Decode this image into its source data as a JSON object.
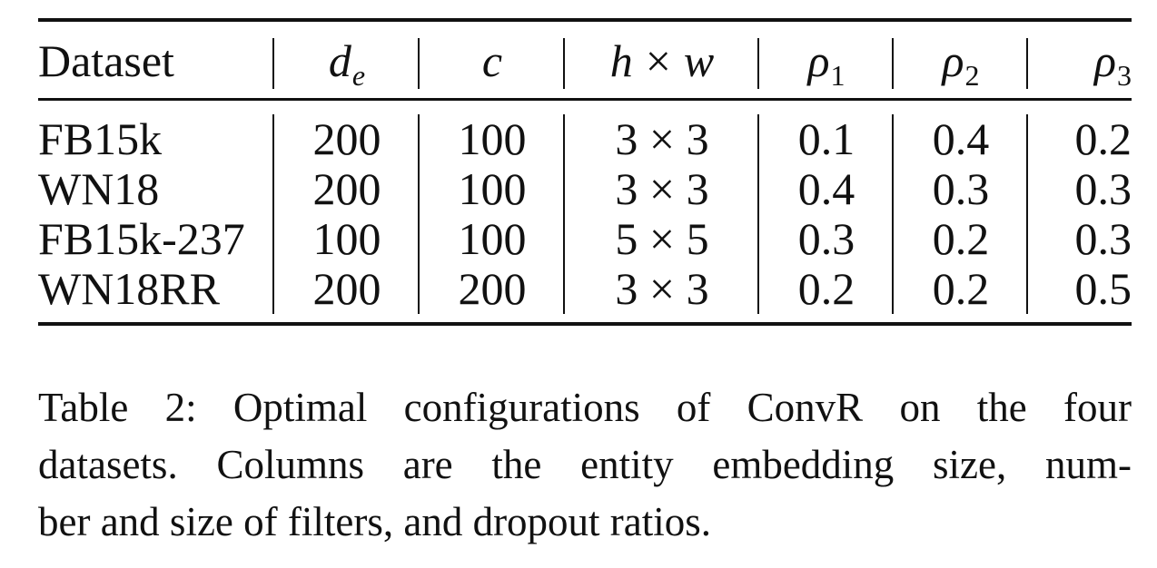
{
  "table": {
    "headers": {
      "dataset": "Dataset",
      "de_base": "d",
      "de_sub": "e",
      "c": "c",
      "hw_h": "h",
      "hw_times": "×",
      "hw_w": "w",
      "p1_base": "ρ",
      "p1_sub": "1",
      "p2_base": "ρ",
      "p2_sub": "2",
      "p3_base": "ρ",
      "p3_sub": "3"
    },
    "rows": [
      {
        "dataset": "FB15k",
        "de": "200",
        "c": "100",
        "hw": "3 × 3",
        "p1": "0.1",
        "p2": "0.4",
        "p3": "0.2"
      },
      {
        "dataset": "WN18",
        "de": "200",
        "c": "100",
        "hw": "3 × 3",
        "p1": "0.4",
        "p2": "0.3",
        "p3": "0.3"
      },
      {
        "dataset": "FB15k-237",
        "de": "100",
        "c": "100",
        "hw": "5 × 5",
        "p1": "0.3",
        "p2": "0.2",
        "p3": "0.3"
      },
      {
        "dataset": "WN18RR",
        "de": "200",
        "c": "200",
        "hw": "3 × 3",
        "p1": "0.2",
        "p2": "0.2",
        "p3": "0.5"
      }
    ]
  },
  "caption": {
    "line1": "Table 2: Optimal configurations of ConvR on the four",
    "line2": "datasets. Columns are the entity embedding size, num-",
    "line3": "ber and size of filters, and dropout ratios."
  }
}
